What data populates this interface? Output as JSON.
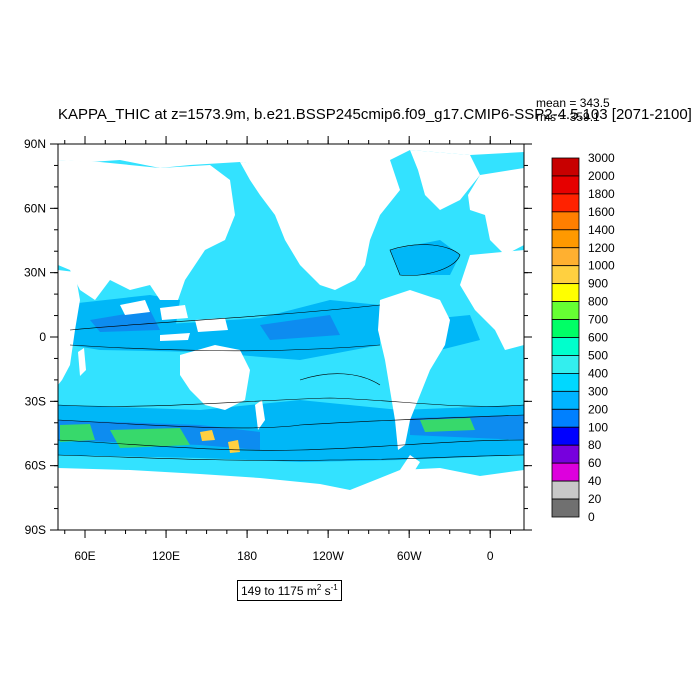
{
  "title": "KAPPA_THIC at z=1573.9m, b.e21.BSSP245cmip6.f09_g17.CMIP6-SSP2-4.5.103 [2071-2100]",
  "stats": {
    "mean": "mean = 343.5",
    "rms": "rms = 359.1"
  },
  "lat_labels": [
    "90N",
    "60N",
    "30N",
    "0",
    "30S",
    "60S",
    "90S"
  ],
  "lon_labels": [
    "60E",
    "120E",
    "180",
    "120W",
    "60W",
    "0"
  ],
  "colorbar": {
    "levels": [
      "3000",
      "2000",
      "1800",
      "1600",
      "1400",
      "1200",
      "1000",
      "900",
      "800",
      "700",
      "600",
      "500",
      "400",
      "300",
      "200",
      "100",
      "80",
      "60",
      "40",
      "20",
      "0"
    ],
    "colors": [
      "#c80000",
      "#e60000",
      "#ff2200",
      "#ff7f00",
      "#ff9900",
      "#ffb030",
      "#ffd040",
      "#ffff00",
      "#66ff33",
      "#00ff66",
      "#00ffcc",
      "#33eeee",
      "#00d8ff",
      "#00b4ff",
      "#0080ff",
      "#0000ff",
      "#7700dd",
      "#dd00dd",
      "#c8c8c8",
      "#707070"
    ]
  },
  "range": {
    "text": "149 to 1175 m",
    "sup2": "2",
    "unit_s": " s",
    "sup_neg": "-1"
  },
  "map_colors": {
    "ocean": "#33e2ff",
    "ocean_med": "#00b7f7",
    "ocean_deep": "#0d8cf0",
    "land": "#ffffff",
    "high": "#37d96b",
    "peak": "#ffd040"
  }
}
